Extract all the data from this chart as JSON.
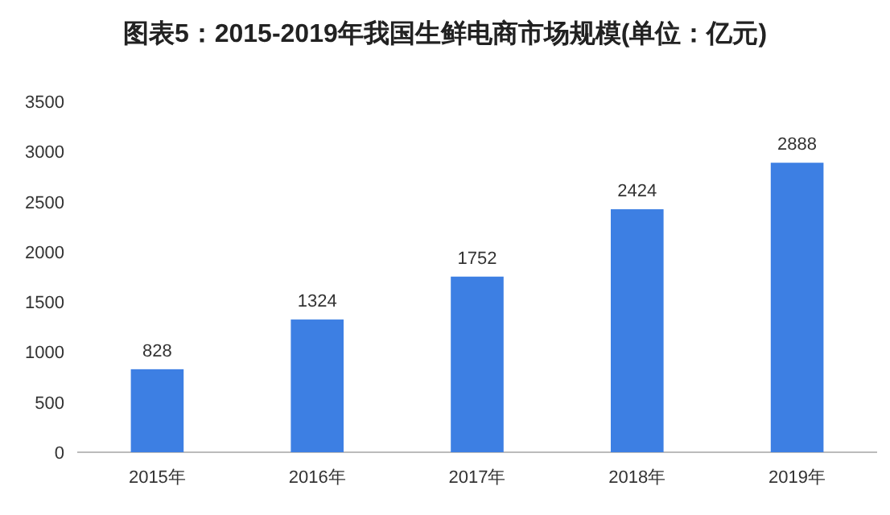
{
  "chart_data": {
    "type": "bar",
    "title": "图表5：2015-2019年我国生鲜电商市场规模(单位：亿元)",
    "categories": [
      "2015年",
      "2016年",
      "2017年",
      "2018年",
      "2019年"
    ],
    "values": [
      828,
      1324,
      1752,
      2424,
      2888
    ],
    "color": "#3d7fe3",
    "ylim": [
      0,
      3500
    ],
    "yticks": [
      0,
      500,
      1000,
      1500,
      2000,
      2500,
      3000,
      3500
    ],
    "data_labels": true
  }
}
